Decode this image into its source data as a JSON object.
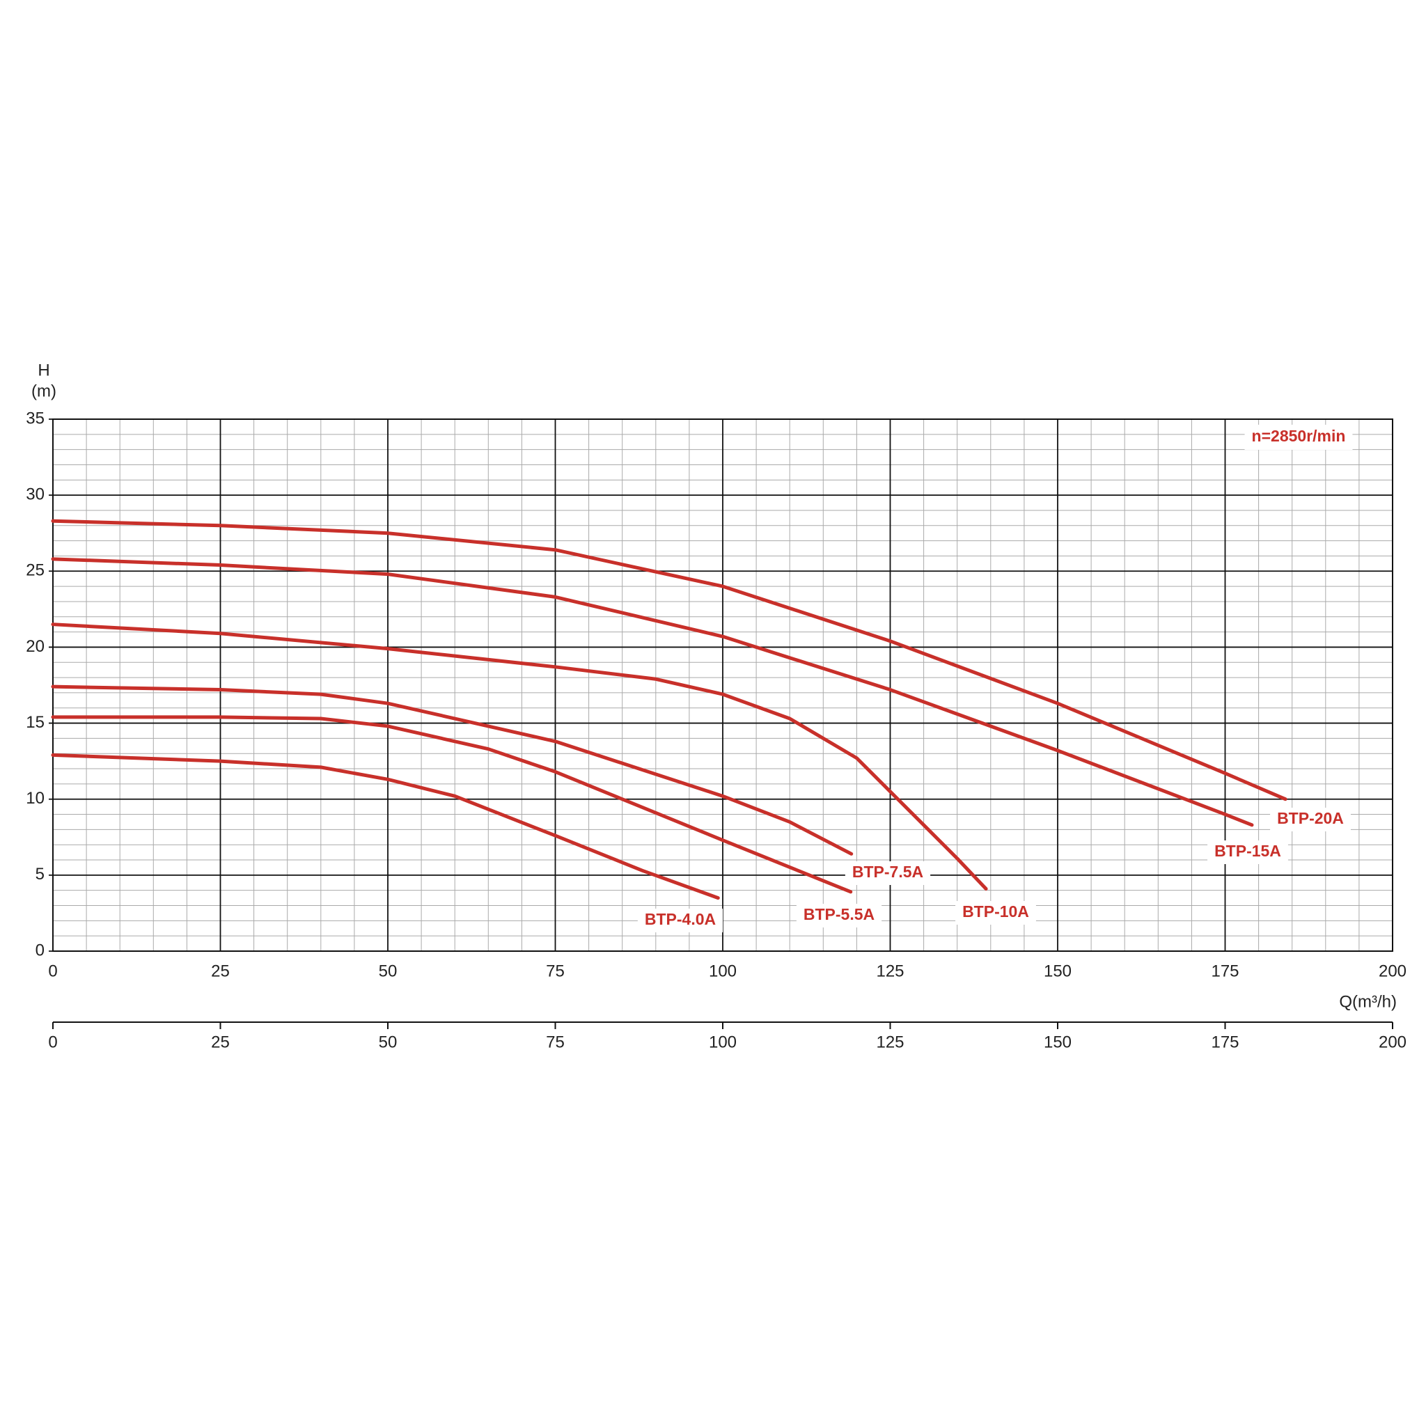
{
  "chart_data": {
    "type": "line",
    "ylabel": "H",
    "yunit": "(m)",
    "xlabel": "Q(m³/h)",
    "annotation": "n=2850r/min",
    "xlim": [
      0,
      200
    ],
    "xticks": [
      0,
      25,
      50,
      75,
      100,
      125,
      150,
      175,
      200
    ],
    "ylim": [
      0,
      35
    ],
    "yticks": [
      0,
      5,
      10,
      15,
      20,
      25,
      30,
      35
    ],
    "x2lim": [
      0,
      200
    ],
    "x2ticks": [
      0,
      25,
      50,
      75,
      100,
      125,
      150,
      175,
      200
    ],
    "grid": true,
    "series": [
      {
        "name": "BTP-20A",
        "color": "#c8302a",
        "x": [
          0,
          25,
          50,
          75,
          100,
          125,
          150,
          175,
          184
        ],
        "values": [
          28.3,
          28.0,
          27.5,
          26.4,
          24.0,
          20.4,
          16.3,
          11.7,
          10.0
        ]
      },
      {
        "name": "BTP-15A",
        "color": "#c8302a",
        "x": [
          0,
          25,
          50,
          75,
          100,
          125,
          150,
          175,
          179
        ],
        "values": [
          25.8,
          25.4,
          24.8,
          23.3,
          20.7,
          17.2,
          13.2,
          9.0,
          8.3
        ]
      },
      {
        "name": "BTP-10A",
        "color": "#c8302a",
        "x": [
          0,
          25,
          50,
          75,
          90,
          100,
          110,
          120,
          125,
          130,
          135,
          139.3
        ],
        "values": [
          21.5,
          20.9,
          19.9,
          18.7,
          17.9,
          16.9,
          15.3,
          12.7,
          10.5,
          8.3,
          6.1,
          4.1
        ]
      },
      {
        "name": "BTP-7.5A",
        "color": "#c8302a",
        "x": [
          0,
          25,
          40,
          50,
          75,
          100,
          110,
          119.2
        ],
        "values": [
          17.4,
          17.2,
          16.9,
          16.3,
          13.8,
          10.2,
          8.5,
          6.4
        ]
      },
      {
        "name": "BTP-5.5A",
        "color": "#c8302a",
        "x": [
          0,
          25,
          40,
          50,
          65,
          75,
          100,
          119.1
        ],
        "values": [
          15.4,
          15.4,
          15.3,
          14.8,
          13.3,
          11.8,
          7.3,
          3.9
        ]
      },
      {
        "name": "BTP-4.0A",
        "color": "#c8302a",
        "x": [
          0,
          25,
          40,
          50,
          60,
          75,
          88,
          99.3
        ],
        "values": [
          12.9,
          12.5,
          12.1,
          11.3,
          10.2,
          7.6,
          5.3,
          3.5
        ]
      }
    ]
  }
}
